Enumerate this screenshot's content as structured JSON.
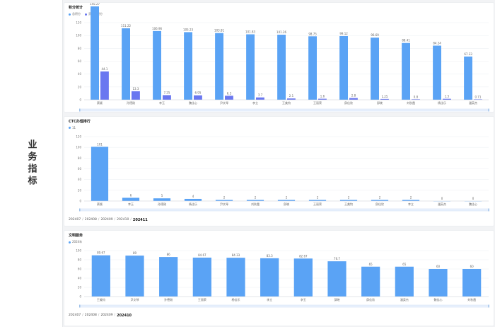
{
  "sidebar": {
    "title": "业务指标"
  },
  "charts": [
    {
      "id": "c1",
      "title": "积分统计",
      "legend": [
        {
          "name": "总积分",
          "color": "#5aa3f5"
        },
        {
          "name": "贡献值积分",
          "color": "#6a77f0"
        }
      ],
      "breadcrumb": [],
      "chart_data": {
        "type": "bar",
        "categories": [
          "蔡颖",
          "孙德刚",
          "李玉",
          "魏佳心",
          "尹文琴",
          "李立",
          "王美钧",
          "王丽荣",
          "邱佳欣",
          "邱晓",
          "刘秋霞",
          "杨佳乐",
          "潘英杰"
        ],
        "series": [
          {
            "name": "总积分",
            "values": [
              145.27,
              111.22,
              106.96,
              105.23,
              103.81,
              101.83,
              101.26,
              98.75,
              99.12,
              96.69,
              88.41,
              84.24,
              67.33
            ]
          },
          {
            "name": "贡献值积分",
            "values": [
              44.1,
              13.3,
              7.25,
              6.95,
              6.3,
              3.7,
              2.1,
              1.6,
              2.8,
              1.25,
              0.8,
              1.5,
              0.71
            ]
          }
        ],
        "yticks": [
          0,
          20,
          40,
          60,
          80,
          100,
          120
        ],
        "ylim": [
          0,
          145.27
        ]
      }
    },
    {
      "id": "c2",
      "title": "CTC办理排行",
      "legend": [
        {
          "name": "11",
          "color": "#5aa3f5"
        }
      ],
      "breadcrumb": [
        "202407",
        "202408",
        "202409",
        "202410",
        "202411"
      ],
      "chart_data": {
        "type": "bar",
        "categories": [
          "蔡颖",
          "李玉",
          "孙德刚",
          "杨佳乐",
          "尹文琴",
          "刘秋霞",
          "邱晓",
          "王丽荣",
          "王美钧",
          "邱佳欣",
          "李立",
          "潘英杰",
          "魏佳心"
        ],
        "series": [
          {
            "name": "11",
            "values": [
              101,
              6,
              5,
              4,
              2,
              2,
              2,
              2,
              2,
              2,
              2,
              0,
              0
            ]
          }
        ],
        "yticks": [
          0,
          20,
          40,
          60,
          80,
          100,
          120
        ],
        "ylim": [
          0,
          120
        ]
      }
    },
    {
      "id": "c3",
      "title": "文明服务",
      "legend": [
        {
          "name": "2024年",
          "color": "#5aa3f5"
        }
      ],
      "breadcrumb": [
        "202407",
        "202408",
        "202409",
        "202410"
      ],
      "chart_data": {
        "type": "bar",
        "categories": [
          "王美钧",
          "尹文琴",
          "孙德刚",
          "王丽荣",
          "杨佳乐",
          "李立",
          "李玉",
          "邱晓",
          "邱佳欣",
          "潘英杰",
          "魏佳心",
          "刘秋霞"
        ],
        "series": [
          {
            "name": "2024年",
            "values": [
              89.67,
              89,
              86,
              84.67,
              84.33,
              83.3,
              82.67,
              76.7,
              65,
              65,
              60,
              60
            ]
          }
        ],
        "yticks": [
          0,
          20,
          40,
          60,
          80,
          100
        ],
        "ylim": [
          0,
          100
        ]
      }
    }
  ]
}
